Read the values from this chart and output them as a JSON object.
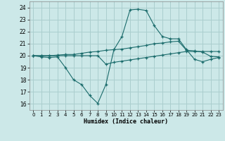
{
  "xlabel": "Humidex (Indice chaleur)",
  "bg_color": "#cce8e8",
  "grid_color": "#aacece",
  "line_color": "#1a6b6b",
  "xlim": [
    -0.5,
    23.5
  ],
  "ylim": [
    15.5,
    24.5
  ],
  "yticks": [
    16,
    17,
    18,
    19,
    20,
    21,
    22,
    23,
    24
  ],
  "xticks": [
    0,
    1,
    2,
    3,
    4,
    5,
    6,
    7,
    8,
    9,
    10,
    11,
    12,
    13,
    14,
    15,
    16,
    17,
    18,
    19,
    20,
    21,
    22,
    23
  ],
  "line1_x": [
    0,
    1,
    2,
    3,
    4,
    5,
    6,
    7,
    8,
    9,
    10,
    11,
    12,
    13,
    14,
    15,
    16,
    17,
    18,
    19,
    20,
    21,
    22,
    23
  ],
  "line1_y": [
    20.0,
    19.9,
    19.85,
    19.9,
    19.0,
    18.0,
    17.6,
    16.7,
    16.05,
    17.6,
    20.5,
    21.6,
    23.8,
    23.85,
    23.75,
    22.5,
    21.6,
    21.4,
    21.4,
    20.5,
    19.7,
    19.5,
    19.7,
    19.85
  ],
  "line2_x": [
    0,
    1,
    2,
    3,
    4,
    5,
    6,
    7,
    8,
    9,
    10,
    11,
    12,
    13,
    14,
    15,
    16,
    17,
    18,
    19,
    20,
    21,
    22,
    23
  ],
  "line2_y": [
    20.0,
    20.0,
    20.0,
    20.05,
    20.1,
    20.1,
    20.2,
    20.3,
    20.35,
    20.45,
    20.5,
    20.55,
    20.65,
    20.75,
    20.85,
    21.0,
    21.05,
    21.15,
    21.2,
    20.45,
    20.4,
    20.3,
    19.95,
    19.9
  ],
  "line3_x": [
    0,
    1,
    2,
    3,
    4,
    5,
    6,
    7,
    8,
    9,
    10,
    11,
    12,
    13,
    14,
    15,
    16,
    17,
    18,
    19,
    20,
    21,
    22,
    23
  ],
  "line3_y": [
    20.0,
    20.0,
    20.0,
    20.0,
    20.0,
    20.0,
    20.0,
    20.0,
    20.0,
    19.3,
    19.45,
    19.55,
    19.65,
    19.75,
    19.85,
    19.95,
    20.05,
    20.15,
    20.25,
    20.35,
    20.35,
    20.35,
    20.35,
    20.35
  ]
}
